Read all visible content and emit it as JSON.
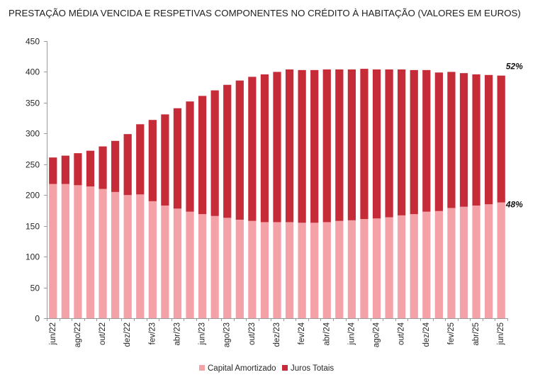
{
  "chart_data": {
    "type": "bar",
    "stacked": true,
    "title": "PRESTAÇÃO MÉDIA VENCIDA E RESPETIVAS COMPONENTES NO CRÉDITO À HABITAÇÃO (VALORES EM EUROS)",
    "xlabel": "",
    "ylabel": "",
    "ylim": [
      0,
      450
    ],
    "yticks": [
      0,
      50,
      100,
      150,
      200,
      250,
      300,
      350,
      400,
      450
    ],
    "grid": false,
    "legend": "bottom",
    "categories": [
      "jun/22",
      "",
      "ago/22",
      "",
      "out/22",
      "",
      "dez/22",
      "",
      "fev/23",
      "",
      "abr/23",
      "",
      "jun/23",
      "",
      "ago/23",
      "",
      "out/23",
      "",
      "dez/23",
      "",
      "fev/24",
      "",
      "abr/24",
      "",
      "jun/24",
      "",
      "ago/24",
      "",
      "out/24",
      "",
      "dez/24",
      "",
      "fev/25",
      "",
      "abr/25",
      "",
      "jun/25"
    ],
    "series": [
      {
        "name": "Capital Amortizado",
        "color": "#F4A1A7",
        "values": [
          218,
          218,
          216,
          214,
          210,
          205,
          200,
          201,
          190,
          183,
          178,
          173,
          169,
          166,
          163,
          160,
          158,
          156,
          156,
          156,
          155,
          155,
          156,
          158,
          159,
          161,
          162,
          164,
          167,
          169,
          173,
          174,
          179,
          181,
          183,
          185,
          188
        ]
      },
      {
        "name": "Juros Totais",
        "color": "#C62B38",
        "values": [
          43,
          46,
          52,
          58,
          69,
          83,
          99,
          114,
          132,
          148,
          163,
          179,
          192,
          204,
          216,
          226,
          234,
          240,
          244,
          248,
          248,
          248,
          248,
          246,
          245,
          244,
          242,
          240,
          237,
          234,
          230,
          225,
          221,
          217,
          213,
          210,
          206
        ]
      }
    ],
    "annotations": [
      {
        "text": "52%",
        "x": "jun/25",
        "series": "Juros Totais"
      },
      {
        "text": "48%",
        "x": "jun/25",
        "series": "Capital Amortizado"
      }
    ]
  }
}
